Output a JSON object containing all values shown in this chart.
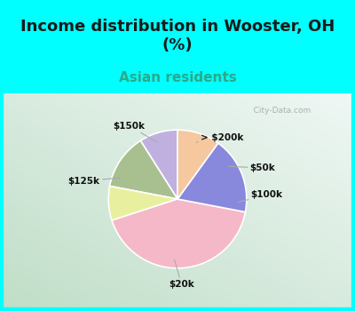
{
  "title": "Income distribution in Wooster, OH\n(%)",
  "subtitle": "Asian residents",
  "title_color": "#1a1a1a",
  "subtitle_color": "#2aaa88",
  "background_top": "#00ffff",
  "labels": [
    "> $200k",
    "$50k",
    "$100k",
    "$20k",
    "$125k",
    "$150k"
  ],
  "values": [
    9,
    13,
    8,
    42,
    18,
    10
  ],
  "colors": [
    "#c0b0e0",
    "#a8c090",
    "#e8f0a0",
    "#f5b8c8",
    "#8888dd",
    "#f5c8a0"
  ],
  "watermark": "   City-Data.com",
  "start_angle": 90,
  "title_fontsize": 13,
  "subtitle_fontsize": 11
}
